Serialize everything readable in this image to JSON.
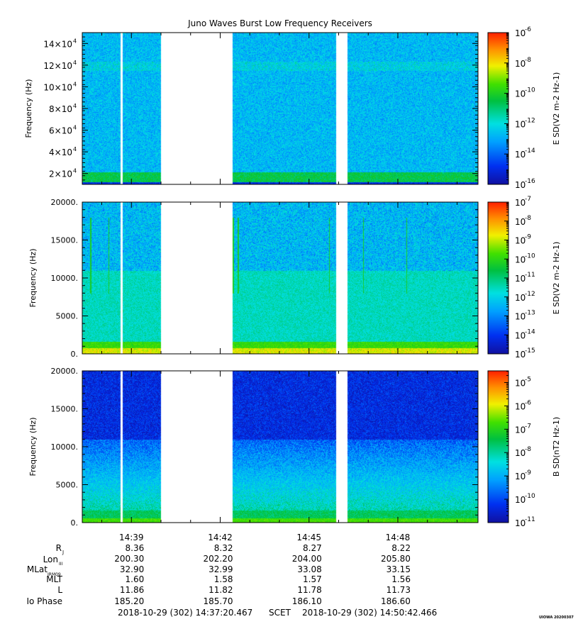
{
  "title": "Juno Waves Burst Low Frequency Receivers",
  "colors": {
    "colormap": [
      "#1010a0",
      "#0030f0",
      "#00a0ff",
      "#00e0e0",
      "#00c040",
      "#40e000",
      "#f0f000",
      "#ff9000",
      "#ff2000"
    ],
    "gap": "#ffffff",
    "panel_border": "#000000"
  },
  "chart_data": [
    {
      "type": "heatmap",
      "name": "panel1",
      "ylabel": "Frequency (Hz)",
      "ylim": [
        10000,
        150000
      ],
      "y_tick_values": [
        20000,
        40000,
        60000,
        80000,
        100000,
        120000,
        140000
      ],
      "y_ticks": [
        {
          "m": "2",
          "e": "4"
        },
        {
          "m": "4",
          "e": "4"
        },
        {
          "m": "6",
          "e": "4"
        },
        {
          "m": "8",
          "e": "4"
        },
        {
          "m": "10",
          "e": "4"
        },
        {
          "m": "12",
          "e": "4"
        },
        {
          "m": "14",
          "e": "4"
        }
      ],
      "colorbar_label": "E SD(V",
      "colorbar_ticks": [
        "-6",
        "-8",
        "-10",
        "-12",
        "-14",
        "-16"
      ],
      "colorbar_log_range": [
        -16,
        -6
      ],
      "profile": "hf"
    },
    {
      "type": "heatmap",
      "name": "panel2",
      "ylabel": "Frequency (Hz)",
      "ylim": [
        0,
        20000
      ],
      "y_tick_values": [
        0,
        5000,
        10000,
        15000,
        20000
      ],
      "y_tick_labels": [
        "0.",
        "5000.",
        "10000.",
        "15000.",
        "20000."
      ],
      "colorbar_label": "E SD(V",
      "colorbar_ticks": [
        "-7",
        "-8",
        "-9",
        "-10",
        "-11",
        "-12",
        "-13",
        "-14",
        "-15"
      ],
      "colorbar_log_range": [
        -15,
        -7
      ],
      "profile": "elf"
    },
    {
      "type": "heatmap",
      "name": "panel3",
      "ylabel": "Frequency (Hz)",
      "ylim": [
        0,
        20000
      ],
      "y_tick_values": [
        0,
        5000,
        10000,
        15000,
        20000
      ],
      "y_tick_labels": [
        "0.",
        "5000.",
        "10000.",
        "15000.",
        "20000."
      ],
      "colorbar_label": "B SD(nT",
      "colorbar_ticks": [
        "-5",
        "-6",
        "-7",
        "-8",
        "-9",
        "-10",
        "-11"
      ],
      "colorbar_log_range": [
        -11,
        -4.5
      ],
      "profile": "mag"
    }
  ],
  "time_axis": {
    "start": "14:37:20.467",
    "end": "14:50:42.466",
    "tick_labels": [
      "14:39",
      "14:42",
      "14:45",
      "14:48"
    ],
    "data_gaps": [
      {
        "from": "14:38:38",
        "to": "14:38:42"
      },
      {
        "from": "14:40:00",
        "to": "14:42:25"
      },
      {
        "from": "14:45:54",
        "to": "14:46:18"
      }
    ]
  },
  "ephemeris": {
    "labels": [
      {
        "text": "R",
        "sub": "J"
      },
      {
        "text": "Lon",
        "sub": "III"
      },
      {
        "text": "MLat",
        "sub": "JRM09"
      },
      {
        "text": "MLT",
        "sub": ""
      },
      {
        "text": "L",
        "sub": ""
      },
      {
        "text": "Io Phase",
        "sub": ""
      }
    ],
    "columns": [
      [
        "8.36",
        "200.30",
        "32.90",
        "1.60",
        "11.86",
        "185.20"
      ],
      [
        "8.32",
        "202.20",
        "32.99",
        "1.58",
        "11.82",
        "185.70"
      ],
      [
        "8.27",
        "204.00",
        "33.08",
        "1.57",
        "11.78",
        "186.10"
      ],
      [
        "8.22",
        "205.80",
        "33.15",
        "1.56",
        "11.73",
        "186.60"
      ]
    ]
  },
  "footer": {
    "start": "2018-10-29 (302) 14:37:20.467",
    "scet": "SCET",
    "end": "2018-10-29 (302) 14:50:42.466",
    "stamp": "UIOWA 20200307"
  }
}
